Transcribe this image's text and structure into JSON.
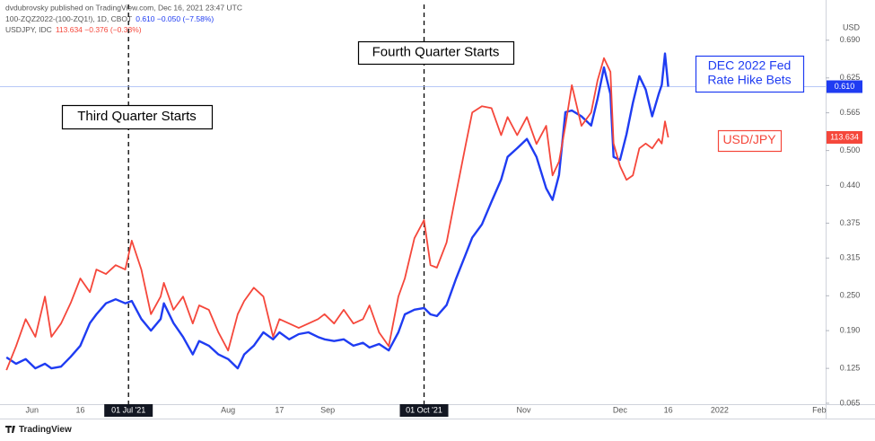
{
  "header": {
    "author_line": "dvdubrovsky published on TradingView.com, Dec 16, 2021 23:47 UTC"
  },
  "watermark": "TradingView",
  "chart_data": {
    "type": "line",
    "y_unit": "USD",
    "x": [
      "2021-05-24",
      "2021-05-27",
      "2021-05-30",
      "2021-06-02",
      "2021-06-05",
      "2021-06-07",
      "2021-06-10",
      "2021-06-13",
      "2021-06-16",
      "2021-06-19",
      "2021-06-21",
      "2021-06-24",
      "2021-06-27",
      "2021-06-30",
      "2021-07-02",
      "2021-07-05",
      "2021-07-08",
      "2021-07-11",
      "2021-07-12",
      "2021-07-15",
      "2021-07-18",
      "2021-07-21",
      "2021-07-23",
      "2021-07-26",
      "2021-07-29",
      "2021-08-01",
      "2021-08-04",
      "2021-08-06",
      "2021-08-09",
      "2021-08-12",
      "2021-08-15",
      "2021-08-17",
      "2021-08-20",
      "2021-08-23",
      "2021-08-26",
      "2021-08-29",
      "2021-08-31",
      "2021-09-03",
      "2021-09-06",
      "2021-09-09",
      "2021-09-12",
      "2021-09-14",
      "2021-09-17",
      "2021-09-20",
      "2021-09-23",
      "2021-09-25",
      "2021-09-28",
      "2021-10-01",
      "2021-10-03",
      "2021-10-05",
      "2021-10-08",
      "2021-10-11",
      "2021-10-14",
      "2021-10-16",
      "2021-10-19",
      "2021-10-22",
      "2021-10-25",
      "2021-10-27",
      "2021-10-30",
      "2021-11-02",
      "2021-11-05",
      "2021-11-08",
      "2021-11-10",
      "2021-11-12",
      "2021-11-14",
      "2021-11-16",
      "2021-11-19",
      "2021-11-22",
      "2021-11-24",
      "2021-11-26",
      "2021-11-28",
      "2021-11-29",
      "2021-12-01",
      "2021-12-03",
      "2021-12-05",
      "2021-12-07",
      "2021-12-09",
      "2021-12-11",
      "2021-12-13",
      "2021-12-14",
      "2021-12-15",
      "2021-12-16"
    ],
    "series": [
      {
        "name": "100-ZQZ2022-(100-ZQ1!), 1D, CBOT",
        "quote": "0.610 −0.050 (−7.58%)",
        "last_label": "0.610",
        "color": "#1f3cf2",
        "axis": "y",
        "values": [
          0.144,
          0.133,
          0.141,
          0.125,
          0.133,
          0.125,
          0.128,
          0.145,
          0.164,
          0.203,
          0.218,
          0.237,
          0.244,
          0.237,
          0.241,
          0.21,
          0.19,
          0.21,
          0.237,
          0.203,
          0.179,
          0.149,
          0.172,
          0.164,
          0.149,
          0.141,
          0.125,
          0.149,
          0.164,
          0.187,
          0.175,
          0.187,
          0.175,
          0.184,
          0.187,
          0.179,
          0.175,
          0.172,
          0.175,
          0.164,
          0.169,
          0.161,
          0.167,
          0.156,
          0.187,
          0.218,
          0.226,
          0.229,
          0.218,
          0.215,
          0.234,
          0.28,
          0.322,
          0.35,
          0.373,
          0.412,
          0.45,
          0.489,
          0.504,
          0.52,
          0.489,
          0.435,
          0.415,
          0.458,
          0.566,
          0.569,
          0.559,
          0.543,
          0.589,
          0.643,
          0.597,
          0.489,
          0.484,
          0.528,
          0.582,
          0.628,
          0.605,
          0.559,
          0.597,
          0.613,
          0.667,
          0.61
        ]
      },
      {
        "name": "USDJPY, IDC",
        "quote": "113.634 −0.376 (−0.33%)",
        "last_label": "113.634",
        "color": "#f5473b",
        "axis": "y2",
        "values": [
          108.89,
          109.38,
          109.93,
          109.57,
          110.39,
          109.57,
          109.84,
          110.26,
          110.76,
          110.48,
          110.94,
          110.85,
          111.03,
          110.94,
          111.53,
          110.94,
          110.03,
          110.39,
          110.67,
          110.12,
          110.39,
          109.84,
          110.21,
          110.12,
          109.66,
          109.29,
          110.03,
          110.3,
          110.57,
          110.39,
          109.57,
          109.93,
          109.84,
          109.75,
          109.84,
          109.93,
          110.03,
          109.84,
          110.12,
          109.84,
          109.93,
          110.21,
          109.66,
          109.38,
          110.39,
          110.76,
          111.58,
          111.95,
          111.03,
          110.98,
          111.49,
          112.5,
          113.5,
          114.14,
          114.27,
          114.23,
          113.68,
          114.05,
          113.68,
          114.05,
          113.5,
          113.87,
          112.86,
          113.14,
          113.87,
          114.7,
          113.87,
          114.14,
          114.79,
          115.25,
          114.97,
          113.51,
          113.05,
          112.77,
          112.86,
          113.41,
          113.51,
          113.41,
          113.6,
          113.51,
          113.96,
          113.634
        ]
      }
    ],
    "xlim": [
      "2021-05-22",
      "2022-02-03"
    ],
    "xticks": [
      {
        "value": "2021-06-01",
        "label": "Jun"
      },
      {
        "value": "2021-06-16",
        "label": "16"
      },
      {
        "value": "2021-07-01",
        "label": "01 Jul '21",
        "highlight": true
      },
      {
        "value": "2021-08-01",
        "label": "Aug"
      },
      {
        "value": "2021-08-17",
        "label": "17"
      },
      {
        "value": "2021-09-01",
        "label": "Sep"
      },
      {
        "value": "2021-10-01",
        "label": "01 Oct '21",
        "highlight": true
      },
      {
        "value": "2021-11-01",
        "label": "Nov"
      },
      {
        "value": "2021-12-01",
        "label": "Dec"
      },
      {
        "value": "2021-12-16",
        "label": "16"
      },
      {
        "value": "2022-01-01",
        "label": "2022"
      },
      {
        "value": "2022-02-01",
        "label": "Feb"
      }
    ],
    "ylim": [
      0.051,
      0.736
    ],
    "yticks": [
      {
        "value": 0.69,
        "label": "0.690"
      },
      {
        "value": 0.625,
        "label": "0.625"
      },
      {
        "value": 0.565,
        "label": "0.565"
      },
      {
        "value": 0.5,
        "label": "0.500"
      },
      {
        "value": 0.44,
        "label": "0.440"
      },
      {
        "value": 0.375,
        "label": "0.375"
      },
      {
        "value": 0.315,
        "label": "0.315"
      },
      {
        "value": 0.25,
        "label": "0.250"
      },
      {
        "value": 0.19,
        "label": "0.190"
      },
      {
        "value": 0.125,
        "label": "0.125"
      },
      {
        "value": 0.065,
        "label": "0.065"
      }
    ],
    "y2lim": [
      108.05,
      116.16
    ],
    "annotations": [
      {
        "lines": [
          "Third Quarter Starts"
        ],
        "color": "#000000"
      },
      {
        "lines": [
          "Fourth Quarter Starts"
        ],
        "color": "#000000"
      },
      {
        "lines": [
          "DEC 2022 Fed",
          "Rate Hike Bets"
        ],
        "color": "#1f3cf2"
      },
      {
        "lines": [
          "USD/JPY"
        ],
        "color": "#f5473b"
      }
    ]
  }
}
